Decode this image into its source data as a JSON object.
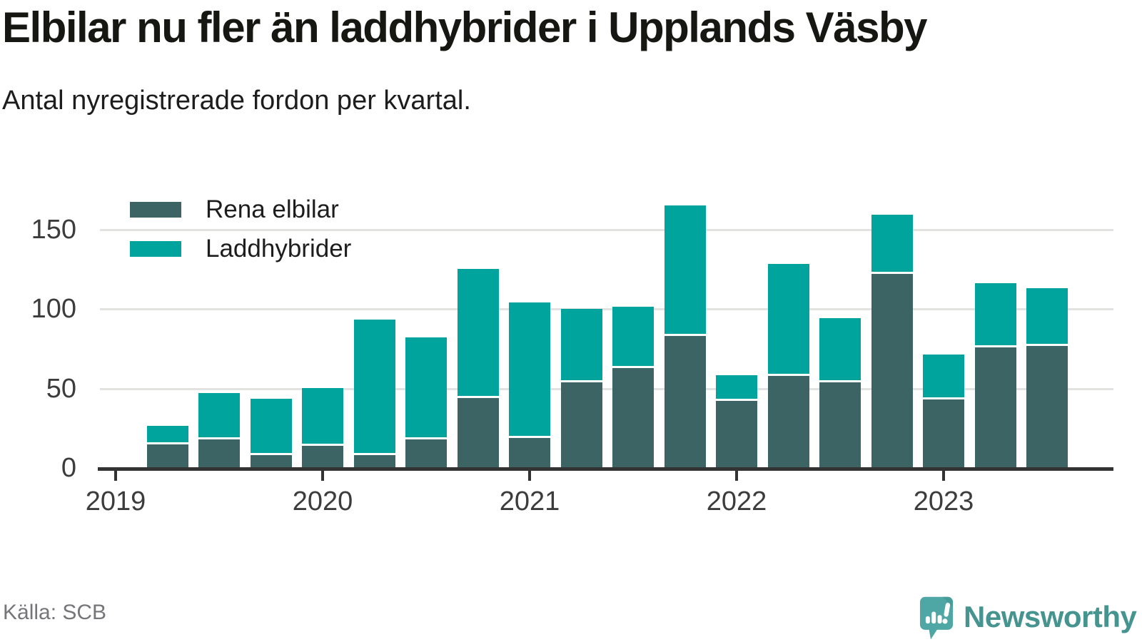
{
  "title": "Elbilar nu fler än laddhybrider i Upplands Väsby",
  "subtitle": "Antal nyregistrerade fordon per kvartal.",
  "source": "Källa: SCB",
  "brand": {
    "name": "Newsworthy"
  },
  "colors": {
    "rena_elbilar": "#3c6464",
    "laddhybrider": "#00a49d",
    "axis": "#333333",
    "grid": "#e2e2e1",
    "tick_label": "#3c3c3c",
    "brand_text": "#46948f",
    "brand_bubble": "#4fa7a5"
  },
  "chart_data": {
    "type": "bar",
    "stacked": true,
    "title": "Elbilar nu fler än laddhybrider i Upplands Väsby",
    "subtitle": "Antal nyregistrerade fordon per kvartal.",
    "x": [
      "2019 Q2",
      "2019 Q3",
      "2019 Q4",
      "2020 Q1",
      "2020 Q2",
      "2020 Q3",
      "2020 Q4",
      "2021 Q1",
      "2021 Q2",
      "2021 Q3",
      "2021 Q4",
      "2022 Q1",
      "2022 Q2",
      "2022 Q3",
      "2022 Q4",
      "2023 Q1",
      "2023 Q2",
      "2023 Q3"
    ],
    "series": [
      {
        "name": "Rena elbilar",
        "color": "#3c6464",
        "values": [
          15,
          18,
          8,
          14,
          8,
          18,
          44,
          19,
          54,
          63,
          83,
          42,
          58,
          54,
          122,
          43,
          76,
          77
        ]
      },
      {
        "name": "Laddhybrider",
        "color": "#00a49d",
        "values": [
          10,
          28,
          34,
          35,
          84,
          63,
          80,
          84,
          45,
          37,
          81,
          15,
          69,
          39,
          36,
          27,
          39,
          35
        ]
      }
    ],
    "x_axis": {
      "tick_labels": [
        "2019",
        "2020",
        "2021",
        "2022",
        "2023"
      ]
    },
    "y_axis": {
      "ticks": [
        0,
        50,
        100,
        150
      ]
    },
    "ylim": [
      0,
      175
    ],
    "grid": true,
    "legend_position": "top-left"
  }
}
